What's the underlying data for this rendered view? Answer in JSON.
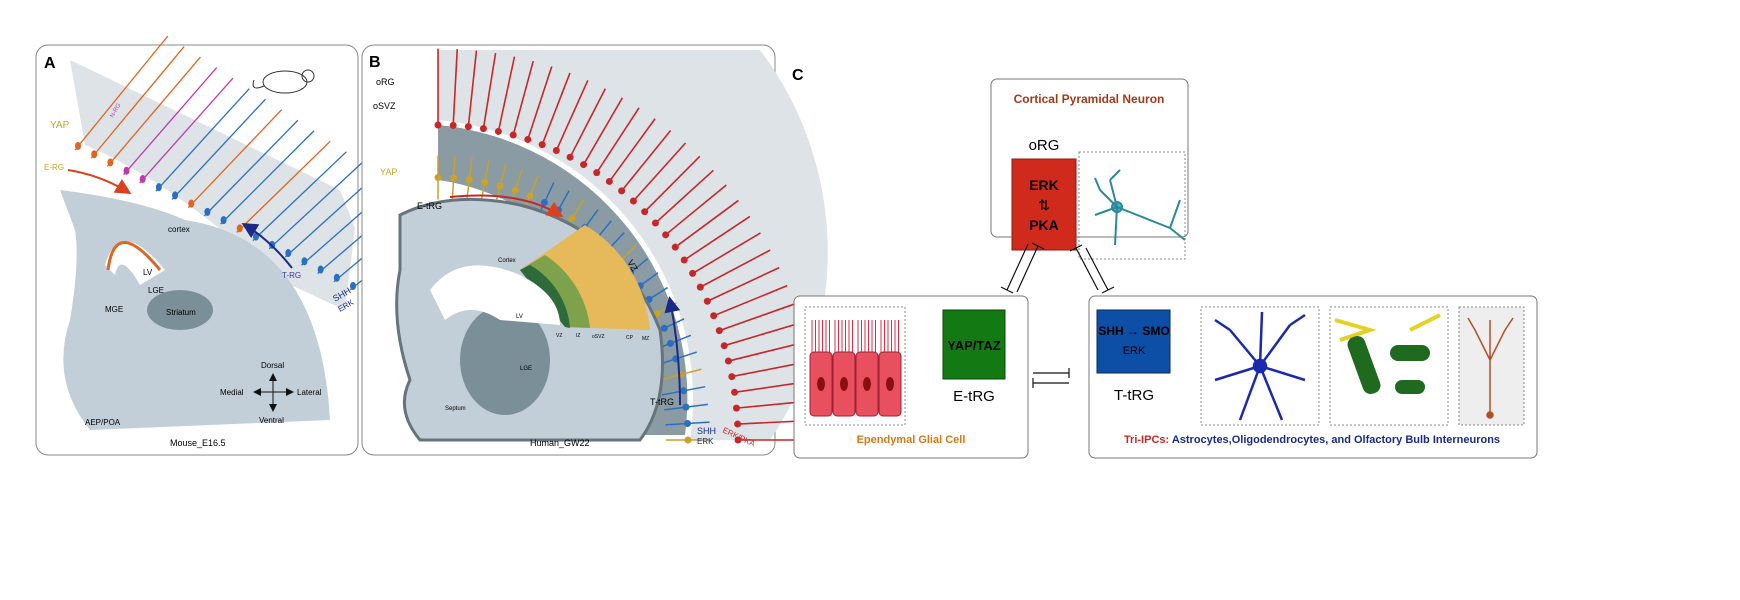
{
  "panel_a": {
    "letter": "A",
    "caption": "Mouse_E16.5",
    "species_icon": "mouse-icon",
    "labels": {
      "yap": "YAP",
      "nrg": "N-RG",
      "erg": "E-RG",
      "trg": "T-RG",
      "shh": "SHH",
      "erk": "ERK",
      "cortex": "cortex",
      "lv": "LV",
      "lge": "LGE",
      "mge": "MGE",
      "striatum": "Striatum",
      "aep": "AEP/POA"
    },
    "compass": {
      "dorsal": "Dorsal",
      "ventral": "Ventral",
      "medial": "Medial",
      "lateral": "Lateral"
    }
  },
  "panel_b": {
    "letter": "B",
    "caption": "Human_GW22",
    "species_icon": "human-icon",
    "labels": {
      "org": "oRG",
      "osvz": "oSVZ",
      "yap": "YAP",
      "etrg": "E-tRG",
      "vz": "VZ",
      "ttrg": "T-tRG",
      "shh": "SHH",
      "erk": "ERK",
      "erkpka": "ERK/PKA",
      "cortex": "Cortex",
      "lv": "LV",
      "lge": "LGE",
      "septum": "Septum",
      "zone_vz": "VZ",
      "zone_iz": "IZ",
      "zone_osvz": "oSVZ",
      "zone_cp": "CP",
      "zone_mz": "MZ"
    }
  },
  "panel_c": {
    "letter": "C",
    "top": {
      "title": "Cortical Pyramidal Neuron",
      "cell": "oRG",
      "box_line1": "ERK",
      "box_arrow": "⇅",
      "box_line2": "PKA",
      "box_color": "#d02a1c"
    },
    "left": {
      "title": "Ependymal Glial Cell",
      "cell": "E-tRG",
      "box": "YAP/TAZ",
      "box_color": "#137a13"
    },
    "right": {
      "title_prefix": "Tri-IPCs:",
      "title_rest": " Astrocytes,Oligodendrocytes, and Olfactory Bulb Interneurons",
      "cell": "T-tRG",
      "box_line1": "SHH → SMO",
      "box_line2": "ERK",
      "box_color": "#0d4ea6"
    }
  },
  "colors": {
    "erg": "#e0651f",
    "trg": "#2b6fc4",
    "org": "#c8272a",
    "yap": "#c9a227",
    "tissue": "#c3cfd8",
    "band": "#dde3e6"
  }
}
